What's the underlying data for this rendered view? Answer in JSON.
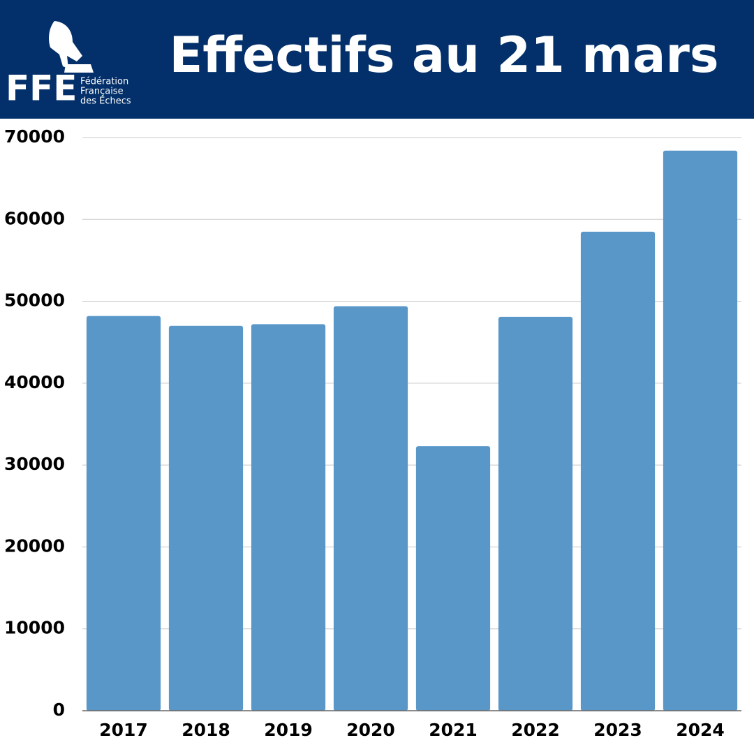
{
  "logo": {
    "abbr": "FFE",
    "lines": [
      "Fédération",
      "Française",
      "des Échecs"
    ]
  },
  "chart_data": {
    "type": "bar",
    "title": "Effectifs au 21 mars",
    "categories": [
      "2017",
      "2018",
      "2019",
      "2020",
      "2021",
      "2022",
      "2023",
      "2024"
    ],
    "values": [
      48200,
      47000,
      47200,
      49400,
      32300,
      48100,
      58500,
      68400
    ],
    "color": "#5a97c9",
    "ylim": [
      0,
      70000
    ],
    "yticks": [
      0,
      10000,
      20000,
      30000,
      40000,
      50000,
      60000,
      70000
    ],
    "grid": true
  }
}
